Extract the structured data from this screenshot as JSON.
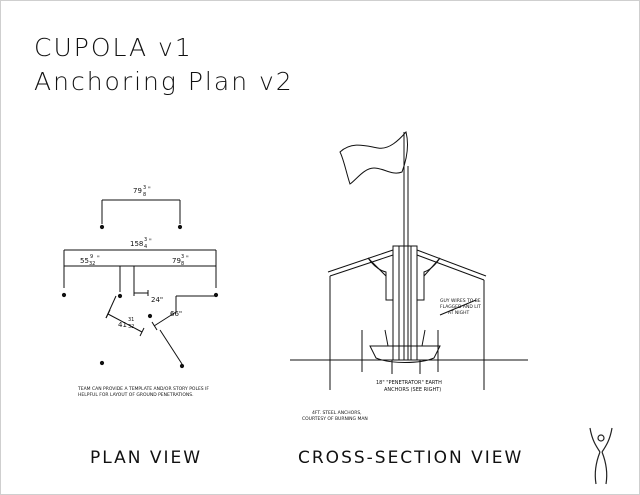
{
  "title": {
    "line1": "CUPOLA v1",
    "line2": "Anchoring Plan v2"
  },
  "plan_view": {
    "label": "PLAN VIEW",
    "dim_top_whole": "79",
    "dim_top_num": "3",
    "dim_top_den": "8",
    "dim_top_mark": "\"",
    "dim_overall_whole": "158",
    "dim_overall_num": "3",
    "dim_overall_den": "4",
    "dim_overall_mark": "\"",
    "dim_left_whole": "55",
    "dim_left_num": "9",
    "dim_left_den": "32",
    "dim_left_mark": "\"",
    "dim_right_whole": "79",
    "dim_right_num": "3",
    "dim_right_den": "8",
    "dim_right_mark": "\"",
    "dim_24": "24\"",
    "dim_66": "66\"",
    "dim_41_whole": "41",
    "dim_41_num": "31",
    "dim_41_den": "32",
    "note_line1": "TEAM CAN PROVIDE A TEMPLATE AND/OR STORY POLES IF",
    "note_line2": "HELPFUL FOR LAYOUT OF GROUND PENETRATIONS."
  },
  "cross_section": {
    "label": "CROSS-SECTION VIEW",
    "guy_note_line1": "GUY WIRES TO BE",
    "guy_note_line2": "FLAGGED AND LIT",
    "guy_note_line3": "AT NIGHT",
    "anchor_note_line1": "18\" \"PENETRATOR\" EARTH",
    "anchor_note_line2": "ANCHORS (SEE RIGHT)",
    "steel_note_line1": "4FT. STEEL ANCHORS,",
    "steel_note_line2": "COURTESY OF BURNING MAN"
  },
  "logo": {
    "icon": "figure-logo-icon"
  }
}
